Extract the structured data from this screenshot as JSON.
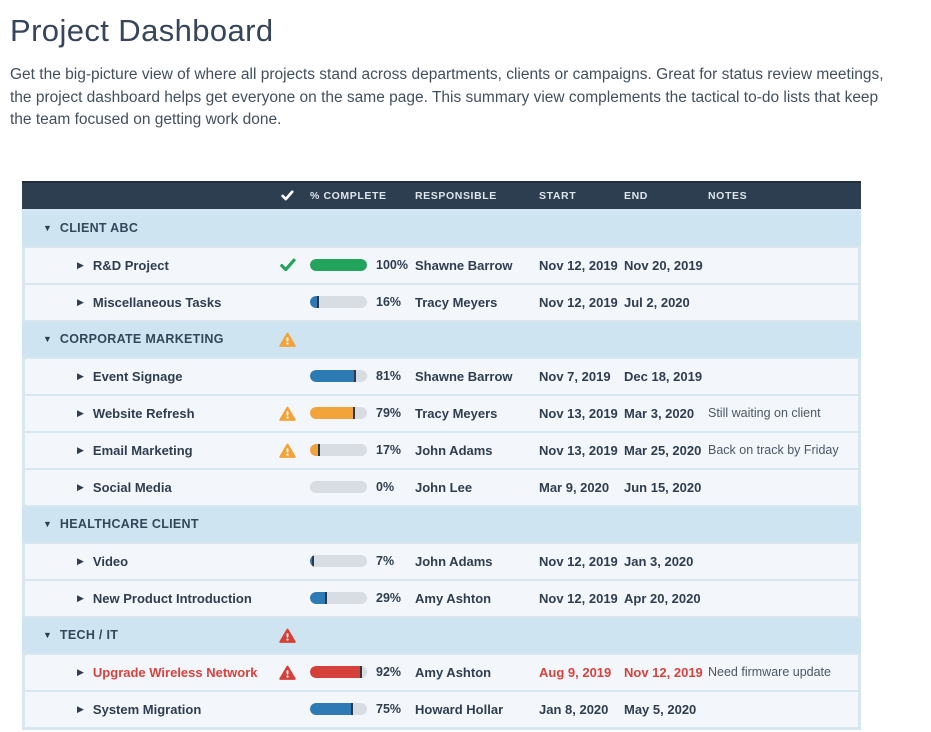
{
  "page": {
    "title": "Project Dashboard",
    "description": "Get the big-picture view of where all projects stand across departments, clients or campaigns. Great for status review meetings, the project dashboard helps get everyone on the same page. This summary view complements the tactical to-do lists that keep the team focused on getting work done."
  },
  "table": {
    "header": {
      "complete": "% COMPLETE",
      "responsible": "RESPONSIBLE",
      "start": "START",
      "end": "END",
      "notes": "NOTES"
    },
    "groups": [
      {
        "label": "CLIENT ABC",
        "status": "none",
        "rows": [
          {
            "name": "R&D Project",
            "name_color": "default",
            "status": "check",
            "pct": 100,
            "pct_label": "100%",
            "bar_color": "green",
            "responsible": "Shawne Barrow",
            "start": "Nov 12, 2019",
            "end": "Nov 20, 2019",
            "dates_color": "default",
            "notes": ""
          },
          {
            "name": "Miscellaneous Tasks",
            "name_color": "default",
            "status": "none",
            "pct": 16,
            "pct_label": "16%",
            "bar_color": "blue",
            "responsible": "Tracy Meyers",
            "start": "Nov 12, 2019",
            "end": "Jul 2, 2020",
            "dates_color": "default",
            "notes": ""
          }
        ]
      },
      {
        "label": "CORPORATE MARKETING",
        "status": "warning",
        "rows": [
          {
            "name": "Event Signage",
            "name_color": "default",
            "status": "none",
            "pct": 81,
            "pct_label": "81%",
            "bar_color": "blue",
            "responsible": "Shawne Barrow",
            "start": "Nov 7, 2019",
            "end": "Dec 18, 2019",
            "dates_color": "default",
            "notes": ""
          },
          {
            "name": "Website Refresh",
            "name_color": "default",
            "status": "warning",
            "pct": 79,
            "pct_label": "79%",
            "bar_color": "orange",
            "responsible": "Tracy Meyers",
            "start": "Nov 13, 2019",
            "end": "Mar 3, 2020",
            "dates_color": "default",
            "notes": "Still waiting on client"
          },
          {
            "name": "Email Marketing",
            "name_color": "default",
            "status": "warning",
            "pct": 17,
            "pct_label": "17%",
            "bar_color": "orange",
            "responsible": "John Adams",
            "start": "Nov 13, 2019",
            "end": "Mar 25, 2020",
            "dates_color": "default",
            "notes": "Back on track by Friday"
          },
          {
            "name": "Social Media",
            "name_color": "default",
            "status": "none",
            "pct": 0,
            "pct_label": "0%",
            "bar_color": "gray",
            "responsible": "John Lee",
            "start": "Mar 9, 2020",
            "end": "Jun 15, 2020",
            "dates_color": "default",
            "notes": ""
          }
        ]
      },
      {
        "label": "HEALTHCARE CLIENT",
        "status": "none",
        "rows": [
          {
            "name": "Video",
            "name_color": "default",
            "status": "none",
            "pct": 7,
            "pct_label": "7%",
            "bar_color": "blue",
            "responsible": "John Adams",
            "start": "Nov 12, 2019",
            "end": "Jan 3, 2020",
            "dates_color": "default",
            "notes": ""
          },
          {
            "name": "New Product Introduction",
            "name_color": "default",
            "status": "none",
            "pct": 29,
            "pct_label": "29%",
            "bar_color": "blue",
            "responsible": "Amy Ashton",
            "start": "Nov 12, 2019",
            "end": "Apr 20, 2020",
            "dates_color": "default",
            "notes": ""
          }
        ]
      },
      {
        "label": "TECH / IT",
        "status": "alert",
        "rows": [
          {
            "name": "Upgrade Wireless Network",
            "name_color": "red",
            "status": "alert",
            "pct": 92,
            "pct_label": "92%",
            "bar_color": "red",
            "responsible": "Amy Ashton",
            "start": "Aug 9, 2019",
            "end": "Nov 12, 2019",
            "dates_color": "red",
            "notes": "Need firmware update"
          },
          {
            "name": "System Migration",
            "name_color": "default",
            "status": "none",
            "pct": 75,
            "pct_label": "75%",
            "bar_color": "blue",
            "responsible": "Howard Hollar",
            "start": "Jan 8, 2020",
            "end": "May 5, 2020",
            "dates_color": "default",
            "notes": ""
          }
        ]
      }
    ]
  },
  "colors": {
    "green": "#23a45c",
    "blue": "#2d7ab5",
    "orange": "#f2a33a",
    "red": "#d6403a",
    "gray": "#d8dde3",
    "cap": "#2b3947",
    "red_text": "#d9413d"
  }
}
